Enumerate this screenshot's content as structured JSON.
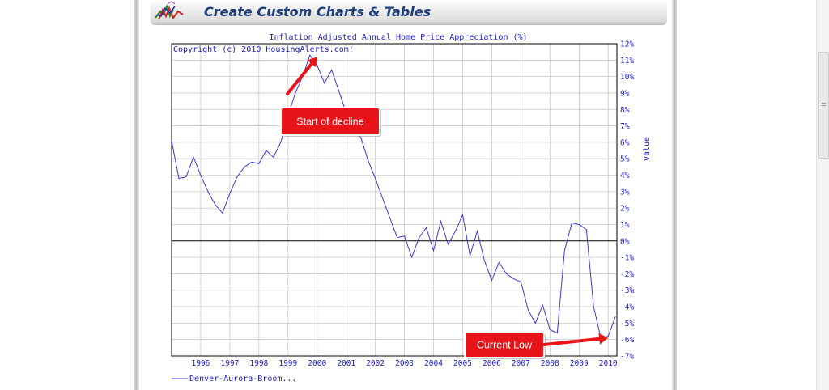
{
  "header": {
    "title": "Create Custom Charts & Tables",
    "logo_icon": "chart-logo-icon"
  },
  "colors": {
    "series": "#3b3bd9",
    "text": "#1a1acc",
    "annotation_fill": "#e8141a",
    "arrow": "#e8141a",
    "zero_line": "#000000",
    "grid": "#c8c8c8"
  },
  "chart_data": {
    "type": "line",
    "title": "Inflation Adjusted Annual Home Price Appreciation (%)",
    "copyright": "Copyright (c) 2010 HousingAlerts.com!",
    "ylabel": "Value",
    "xlim": [
      1995.0,
      2010.3
    ],
    "ylim": [
      -7,
      12
    ],
    "y_ticks": [
      12,
      11,
      10,
      9,
      8,
      7,
      6,
      5,
      4,
      3,
      2,
      1,
      0,
      -1,
      -2,
      -3,
      -4,
      -5,
      -6,
      -7
    ],
    "y_tick_labels": [
      "12%",
      "11%",
      "10%",
      "9%",
      "8%",
      "7%",
      "6%",
      "5%",
      "4%",
      "3%",
      "2%",
      "1%",
      "0%",
      "-1%",
      "-2%",
      "-3%",
      "-4%",
      "-5%",
      "-6%",
      "-7%"
    ],
    "x_ticks": [
      1996,
      1997,
      1998,
      1999,
      2000,
      2001,
      2002,
      2003,
      2004,
      2005,
      2006,
      2007,
      2008,
      2009,
      2010
    ],
    "x_tick_labels": [
      "1996",
      "1997",
      "1998",
      "1999",
      "2000",
      "2001",
      "2002",
      "2003",
      "2004",
      "2005",
      "2006",
      "2007",
      "2008",
      "2009",
      "2010"
    ],
    "grid": true,
    "zero_line": true,
    "legend_position": "bottom-left",
    "series": [
      {
        "name": "Denver-Aurora-Broom...",
        "x": [
          1995.0,
          1995.25,
          1995.5,
          1995.75,
          1996.0,
          1996.25,
          1996.5,
          1996.75,
          1997.0,
          1997.25,
          1997.5,
          1997.75,
          1998.0,
          1998.25,
          1998.5,
          1998.75,
          1999.0,
          1999.25,
          1999.5,
          1999.75,
          2000.0,
          2000.25,
          2000.5,
          2000.75,
          2001.0,
          2001.25,
          2001.5,
          2001.75,
          2002.0,
          2002.25,
          2002.5,
          2002.75,
          2003.0,
          2003.25,
          2003.5,
          2003.75,
          2004.0,
          2004.25,
          2004.5,
          2004.75,
          2005.0,
          2005.25,
          2005.5,
          2005.75,
          2006.0,
          2006.25,
          2006.5,
          2006.75,
          2007.0,
          2007.25,
          2007.5,
          2007.75,
          2008.0,
          2008.25,
          2008.5,
          2008.75,
          2009.0,
          2009.25,
          2009.5,
          2009.75,
          2010.0,
          2010.25
        ],
        "values": [
          6.1,
          3.8,
          3.9,
          5.1,
          4.0,
          3.0,
          2.2,
          1.7,
          2.9,
          3.9,
          4.5,
          4.8,
          4.7,
          5.5,
          5.1,
          6.0,
          7.6,
          9.0,
          10.0,
          11.3,
          10.7,
          9.6,
          10.4,
          9.1,
          7.8,
          6.8,
          6.3,
          4.9,
          3.8,
          2.6,
          1.4,
          0.2,
          0.3,
          -1.0,
          0.2,
          0.8,
          -0.6,
          1.2,
          -0.2,
          0.6,
          1.6,
          -0.9,
          0.6,
          -1.2,
          -2.4,
          -1.3,
          -2.0,
          -2.3,
          -2.5,
          -4.2,
          -5.0,
          -3.9,
          -5.4,
          -5.6,
          -0.6,
          1.1,
          1.0,
          0.7,
          -4.0,
          -5.9,
          -5.8,
          -4.6
        ]
      }
    ],
    "annotations": [
      {
        "text": "Start of decline",
        "target_x": 2000.0,
        "target_y": 11.2
      },
      {
        "text": "Current Low",
        "target_x": 2010.0,
        "target_y": -5.9
      }
    ]
  }
}
